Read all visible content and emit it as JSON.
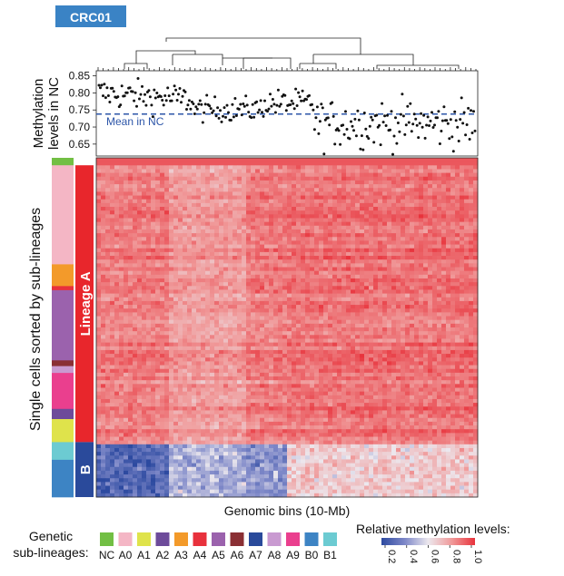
{
  "title_badge": {
    "text": "CRC01",
    "color": "#3a83c5"
  },
  "chart_data": [
    {
      "type": "scatter",
      "ylabel_line1": "Methylation",
      "ylabel_line2": "levels in NC",
      "yticks": [
        0.85,
        0.8,
        0.75,
        0.7,
        0.65
      ],
      "ylim": [
        0.615,
        0.865
      ],
      "mean_line": {
        "value": 0.738,
        "label": "Mean in NC",
        "color": "#2c55a8"
      },
      "x_segments": [
        {
          "bins": 70,
          "mean": 0.76,
          "spread": 0.022,
          "start": 0.8,
          "end": 0.78
        },
        {
          "bins": 52,
          "mean": 0.752,
          "spread": 0.018
        },
        {
          "bins": 38,
          "mean": 0.77,
          "spread": 0.02
        },
        {
          "bins": 120,
          "mean": 0.71,
          "spread": 0.035
        }
      ],
      "dendrogram": true
    },
    {
      "type": "heatmap",
      "xlabel": "Genomic bins (10-Mb)",
      "ylabel": "Single cells sorted by sub-lineages",
      "color_scale": {
        "title": "Relative methylation levels:",
        "ticks": [
          "0.2",
          "0.4",
          "0.6",
          "0.8",
          "1.0"
        ],
        "colors": [
          "#2d4aa0",
          "#7e88c8",
          "#ece8ee",
          "#f09a9a",
          "#e8333c"
        ]
      },
      "column_blocks": [
        {
          "fraction": 0.19,
          "lineageA_level": 0.86,
          "lineageB_level": 0.3
        },
        {
          "fraction": 0.2,
          "lineageA_level": 0.8,
          "lineageB_level": 0.5
        },
        {
          "fraction": 0.11,
          "lineageA_level": 0.86,
          "lineageB_level": 0.42
        },
        {
          "fraction": 0.5,
          "lineageA_level": 0.88,
          "lineageB_level": 0.68
        }
      ],
      "row_groups": [
        {
          "name": "NC",
          "fraction": 0.022,
          "color": "#72bf44"
        },
        {
          "name": "A0",
          "fraction": 0.292,
          "color": "#f4b6c5"
        },
        {
          "name": "A3",
          "fraction": 0.064,
          "color": "#f39a2a"
        },
        {
          "name": "A4",
          "fraction": 0.012,
          "color": "#e8313c"
        },
        {
          "name": "A5",
          "fraction": 0.207,
          "color": "#9b62ad"
        },
        {
          "name": "A6",
          "fraction": 0.017,
          "color": "#8a2f34"
        },
        {
          "name": "A8",
          "fraction": 0.02,
          "color": "#c99ad1"
        },
        {
          "name": "A9",
          "fraction": 0.106,
          "color": "#ea3f8e"
        },
        {
          "name": "A2",
          "fraction": 0.03,
          "color": "#6d4b9a"
        },
        {
          "name": "A1",
          "fraction": 0.068,
          "color": "#dfe34b"
        },
        {
          "name": "B1",
          "fraction": 0.052,
          "color": "#6ccbd2"
        },
        {
          "name": "B0",
          "fraction": 0.11,
          "color": "#3d84c4"
        }
      ],
      "lineages": [
        {
          "label": "Lineage A",
          "start": 0.022,
          "end": 0.838,
          "color": "#e8262c"
        },
        {
          "label": "B",
          "start": 0.838,
          "end": 1.0,
          "color": "#2a4a9b"
        }
      ]
    }
  ],
  "legend": {
    "title_line1": "Genetic",
    "title_line2": "sub-lineages:",
    "items": [
      {
        "label": "NC",
        "color": "#72bf44"
      },
      {
        "label": "A0",
        "color": "#f4b6c5"
      },
      {
        "label": "A1",
        "color": "#dfe34b"
      },
      {
        "label": "A2",
        "color": "#6d4b9a"
      },
      {
        "label": "A3",
        "color": "#f39a2a"
      },
      {
        "label": "A4",
        "color": "#e8313c"
      },
      {
        "label": "A5",
        "color": "#9b62ad"
      },
      {
        "label": "A6",
        "color": "#8a2f34"
      },
      {
        "label": "A7",
        "color": "#2a4a9b"
      },
      {
        "label": "A8",
        "color": "#c99ad1"
      },
      {
        "label": "A9",
        "color": "#ea3f8e"
      },
      {
        "label": "B0",
        "color": "#3d84c4"
      },
      {
        "label": "B1",
        "color": "#6ccbd2"
      }
    ]
  }
}
